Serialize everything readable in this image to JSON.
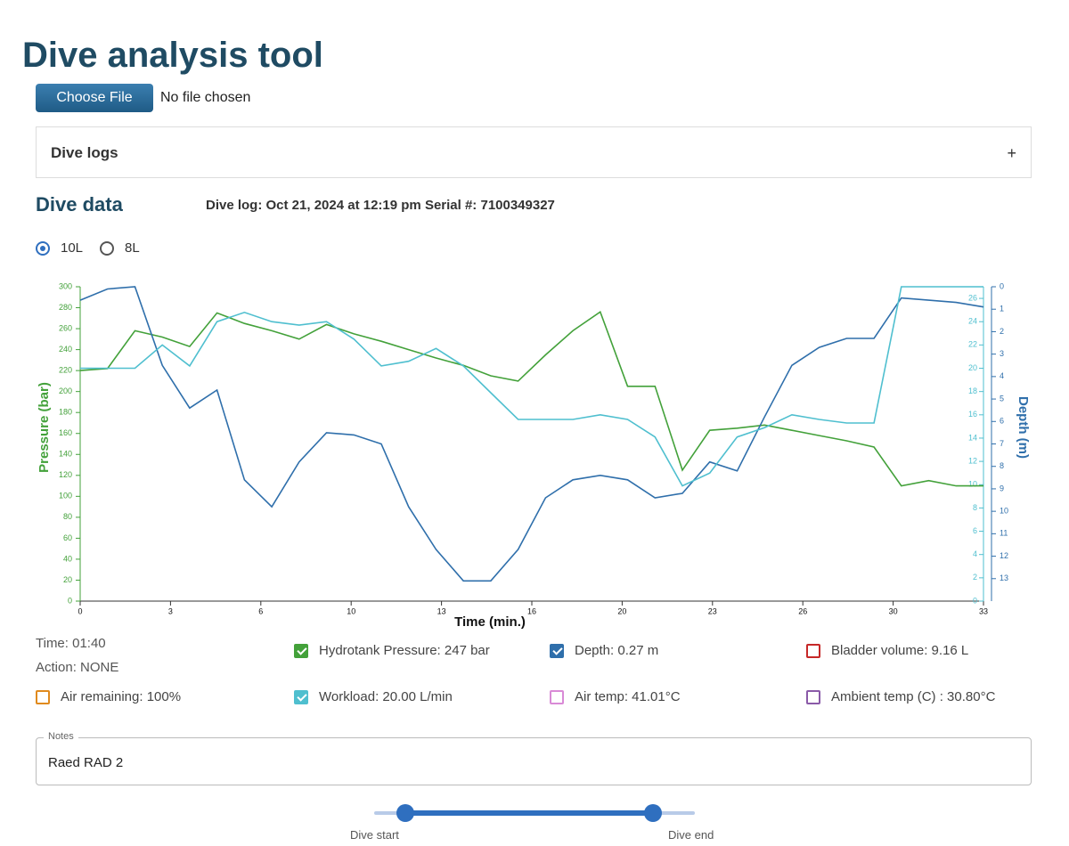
{
  "header": {
    "title": "Dive analysis tool"
  },
  "file_input": {
    "button": "Choose File",
    "status": "No file chosen"
  },
  "accordion": {
    "title": "Dive logs",
    "toggle": "+"
  },
  "section": {
    "title": "Dive data",
    "log_info": "Dive log: Oct 21, 2024 at 12:19 pm Serial #: 7100349327"
  },
  "radios": [
    {
      "label": "10L",
      "selected": true
    },
    {
      "label": "8L",
      "selected": false
    }
  ],
  "chart_data": {
    "type": "line",
    "x_label": "Time (min.)",
    "y_label": "Pressure (bar)",
    "y2_label": "Depth (m)",
    "x": [
      0,
      1,
      2,
      3,
      4,
      5,
      6,
      7,
      8,
      9,
      10,
      11,
      12,
      13,
      14,
      15,
      16,
      17,
      18,
      19,
      20,
      21,
      22,
      23,
      24,
      25,
      26,
      27,
      28,
      29,
      30,
      31,
      32,
      33
    ],
    "xlim": [
      0,
      33
    ],
    "xticks": [
      {
        "value": 0,
        "label": "0"
      },
      {
        "value": 3.3,
        "label": "3"
      },
      {
        "value": 6.6,
        "label": "6"
      },
      {
        "value": 9.9,
        "label": "10"
      },
      {
        "value": 13.2,
        "label": "13"
      },
      {
        "value": 16.5,
        "label": "16"
      },
      {
        "value": 19.8,
        "label": "20"
      },
      {
        "value": 23.1,
        "label": "23"
      },
      {
        "value": 26.4,
        "label": "26"
      },
      {
        "value": 29.7,
        "label": "30"
      },
      {
        "value": 33,
        "label": "33"
      }
    ],
    "ylim": [
      0,
      300
    ],
    "yticks": [
      0,
      20,
      40,
      60,
      80,
      100,
      120,
      140,
      160,
      180,
      200,
      220,
      240,
      260,
      280,
      300
    ],
    "y2lim": [
      0,
      14
    ],
    "y2ticks": [
      0,
      1,
      2,
      3,
      4,
      5,
      6,
      7,
      8,
      9,
      10,
      11,
      12,
      13
    ],
    "y2_inverted": true,
    "y3lim": [
      0,
      27
    ],
    "y3ticks": [
      0,
      2,
      4,
      6,
      8,
      10,
      12,
      14,
      16,
      18,
      20,
      22,
      24,
      26
    ],
    "y_color": "#43a13a",
    "y2_color": "#2f6fab",
    "y3_color": "#4fbfcf",
    "series": [
      {
        "name": "Hydrotank Pressure",
        "color": "#43a13a",
        "axis": "y",
        "values": [
          220,
          222,
          258,
          252,
          243,
          275,
          265,
          258,
          250,
          264,
          255,
          248,
          240,
          232,
          225,
          215,
          210,
          235,
          258,
          276,
          205,
          205,
          125,
          163,
          165,
          168,
          163,
          158,
          153,
          147,
          110,
          115,
          110,
          110
        ]
      },
      {
        "name": "Depth",
        "color": "#2f6fab",
        "axis": "y2",
        "values": [
          0.6,
          0.1,
          0,
          3.5,
          5.4,
          4.6,
          8.6,
          9.8,
          7.8,
          6.5,
          6.6,
          7,
          9.8,
          11.7,
          13.1,
          13.1,
          11.7,
          9.4,
          8.6,
          8.4,
          8.6,
          9.4,
          9.2,
          7.8,
          8.2,
          5.8,
          3.5,
          2.7,
          2.3,
          2.3,
          0.5,
          0.6,
          0.7,
          0.9
        ]
      },
      {
        "name": "Workload",
        "color": "#4fbfcf",
        "axis": "y3",
        "values": [
          20,
          20,
          20,
          22,
          20.2,
          24,
          24.8,
          24,
          23.7,
          24,
          22.5,
          20.2,
          20.6,
          21.7,
          20.2,
          17.9,
          15.6,
          15.6,
          15.6,
          16,
          15.6,
          14.1,
          9.9,
          11,
          14.1,
          14.9,
          16,
          15.6,
          15.3,
          15.3,
          27,
          27,
          27,
          27
        ]
      }
    ]
  },
  "status": {
    "time": "Time: 01:40",
    "action": "Action: NONE"
  },
  "checkboxes": [
    {
      "label": "Hydrotank Pressure: 247 bar",
      "color": "#43a13a",
      "checked": true
    },
    {
      "label": "Depth: 0.27 m",
      "color": "#2f6fab",
      "checked": true
    },
    {
      "label": "Bladder volume: 9.16 L",
      "color": "#c62828",
      "checked": false
    },
    {
      "label": "Air remaining: 100%",
      "color": "#e08a1e",
      "checked": false
    },
    {
      "label": "Workload: 20.00 L/min",
      "color": "#4fbfcf",
      "checked": true
    },
    {
      "label": "Air temp: 41.01°C",
      "color": "#d98ad6",
      "checked": false
    },
    {
      "label": "Ambient temp (C) : 30.80°C",
      "color": "#8a5aa8",
      "checked": false
    }
  ],
  "notes": {
    "label": "Notes",
    "value": "Raed RAD 2"
  },
  "slider": {
    "start_label": "Dive start",
    "end_label": "Dive end"
  }
}
